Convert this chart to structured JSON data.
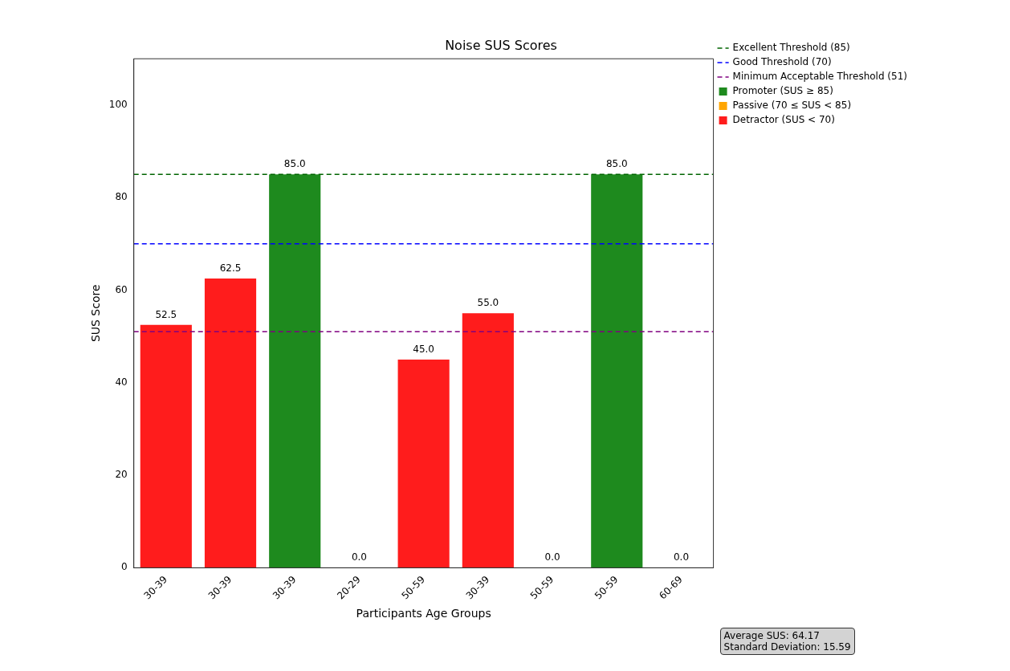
{
  "chart_data": {
    "type": "bar",
    "title": "Noise SUS Scores",
    "xlabel": "Participants Age Groups",
    "ylabel": "SUS Score",
    "categories": [
      "30-39",
      "30-39",
      "30-39",
      "20-29",
      "50-59",
      "30-39",
      "50-59",
      "50-59",
      "60-69"
    ],
    "stacked": true,
    "series": [
      {
        "name": "Promoter (SUS ≥ 85)",
        "color": "#1e8a1e",
        "values": [
          null,
          null,
          85,
          null,
          null,
          null,
          null,
          85,
          null
        ],
        "value_labels": [
          null,
          null,
          "85.0",
          null,
          null,
          null,
          null,
          "85.0",
          null
        ]
      },
      {
        "name": "Passive (70 ≤ SUS < 85)",
        "color": "#ffa500",
        "values": [
          null,
          null,
          null,
          null,
          null,
          null,
          null,
          null,
          null
        ]
      },
      {
        "name": "Detractor (SUS < 70)",
        "color": "#ff1c1c",
        "values": [
          52.5,
          62.5,
          null,
          0,
          45,
          55,
          0,
          null,
          0
        ],
        "value_labels": [
          "52.5",
          "62.5",
          null,
          "0.0",
          "45.0",
          "55.0",
          "0.0",
          null,
          "0.0"
        ]
      }
    ],
    "ref_lines": [
      {
        "axis": "y",
        "value": 85,
        "label": "Excellent Threshold (85)",
        "color": "#006400",
        "line_style": "dashed"
      },
      {
        "axis": "y",
        "value": 70,
        "label": "Good Threshold (70)",
        "color": "#0000ff",
        "line_style": "dashed"
      },
      {
        "axis": "y",
        "value": 51,
        "label": "Minimum Acceptable Threshold (51)",
        "color": "#800080",
        "line_style": "dashed"
      }
    ],
    "annotations": [
      "Average SUS: 64.17",
      "Standard Deviation: 15.59"
    ],
    "ylim": [
      0,
      110
    ],
    "yticks": [
      0,
      20,
      40,
      60,
      80,
      100
    ],
    "grid": false,
    "legend": "top right"
  }
}
